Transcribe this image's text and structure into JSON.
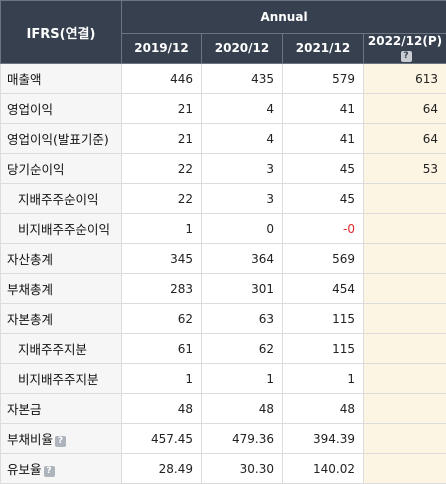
{
  "header": {
    "row_title": "IFRS(연결)",
    "group": "Annual",
    "years": [
      "2019/12",
      "2020/12",
      "2021/12",
      "2022/12(P)"
    ],
    "help_icon": "question-icon"
  },
  "colors": {
    "header_bg": "#36404f",
    "estimate_bg": "#fdf5e4",
    "negative": "#e3262b"
  },
  "rows": [
    {
      "label": "매출액",
      "values": [
        "446",
        "435",
        "579",
        "613"
      ]
    },
    {
      "label": "영업이익",
      "values": [
        "21",
        "4",
        "41",
        "64"
      ]
    },
    {
      "label": "영업이익(발표기준)",
      "values": [
        "21",
        "4",
        "41",
        "64"
      ]
    },
    {
      "label": "당기순이익",
      "values": [
        "22",
        "3",
        "45",
        "53"
      ]
    },
    {
      "label": "지배주주순이익",
      "values": [
        "22",
        "3",
        "45",
        ""
      ]
    },
    {
      "label": "비지배주주순이익",
      "values": [
        "1",
        "0",
        "-0",
        ""
      ]
    },
    {
      "label": "자산총계",
      "values": [
        "345",
        "364",
        "569",
        ""
      ]
    },
    {
      "label": "부채총계",
      "values": [
        "283",
        "301",
        "454",
        ""
      ]
    },
    {
      "label": "자본총계",
      "values": [
        "62",
        "63",
        "115",
        ""
      ]
    },
    {
      "label": "지배주주지분",
      "values": [
        "61",
        "62",
        "115",
        ""
      ]
    },
    {
      "label": "비지배주주지분",
      "values": [
        "1",
        "1",
        "1",
        ""
      ]
    },
    {
      "label": "자본금",
      "values": [
        "48",
        "48",
        "48",
        ""
      ]
    },
    {
      "label": "부채비율",
      "values": [
        "457.45",
        "479.36",
        "394.39",
        ""
      ]
    },
    {
      "label": "유보율",
      "values": [
        "28.49",
        "30.30",
        "140.02",
        ""
      ]
    }
  ]
}
